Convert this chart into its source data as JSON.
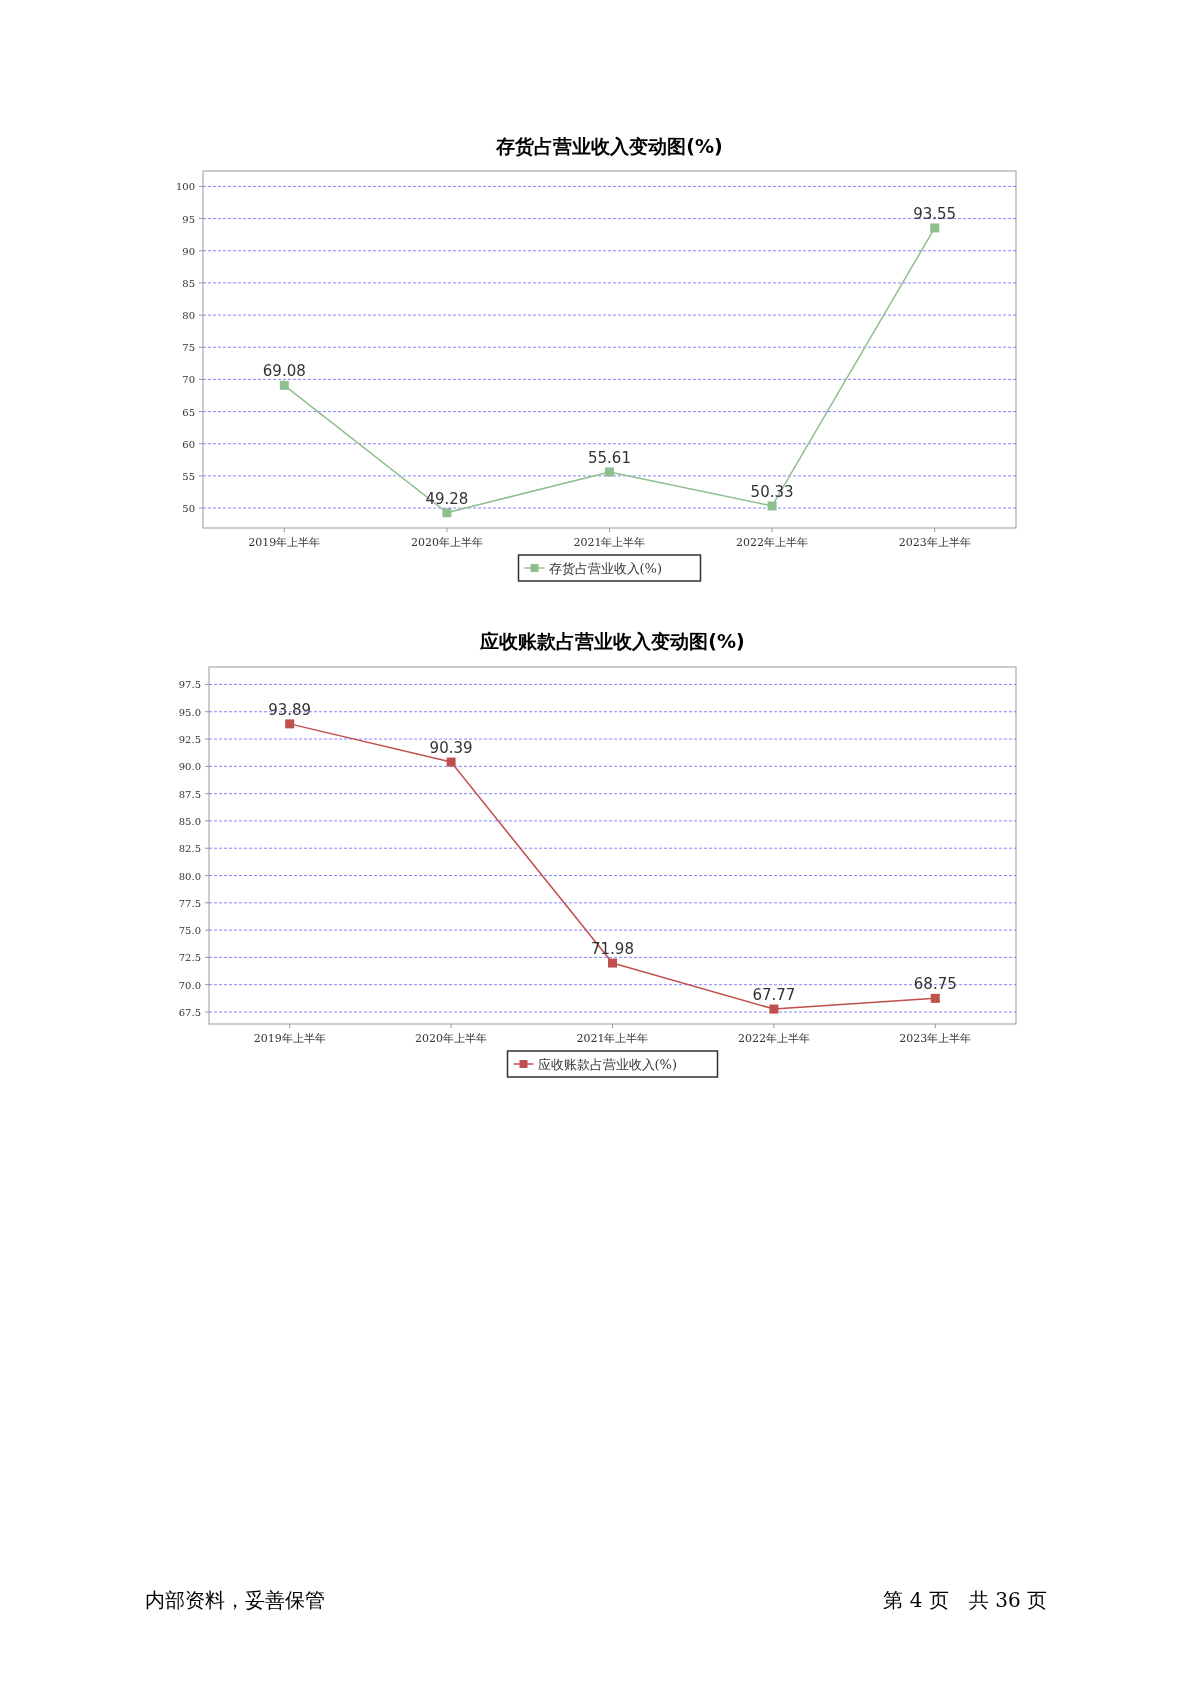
{
  "chart_data": [
    {
      "type": "line",
      "title": "存货占营业收入变动图(%)",
      "categories": [
        "2019年上半年",
        "2020年上半年",
        "2021年上半年",
        "2022年上半年",
        "2023年上半年"
      ],
      "series": [
        {
          "name": "存货占营业收入(%)",
          "color": "#8fbf8f",
          "values": [
            69.08,
            49.28,
            55.61,
            50.33,
            93.55
          ]
        }
      ],
      "ylim": [
        46.9,
        102.4
      ],
      "yticks": [
        50,
        55,
        60,
        65,
        70,
        75,
        80,
        85,
        90,
        95,
        100
      ],
      "grid": "y",
      "legend": "bottom",
      "marker": "square",
      "data_labels": true
    },
    {
      "type": "line",
      "title": "应收账款占营业收入变动图(%)",
      "categories": [
        "2019年上半年",
        "2020年上半年",
        "2021年上半年",
        "2022年上半年",
        "2023年上半年"
      ],
      "series": [
        {
          "name": "应收账款占营业收入(%)",
          "color": "#c0504d",
          "values": [
            93.89,
            90.39,
            71.98,
            67.77,
            68.75
          ]
        }
      ],
      "ylim": [
        66.4,
        99.1
      ],
      "yticks": [
        {
          "value": 67.5,
          "label": "67.5"
        },
        {
          "value": 70,
          "label": "70.0"
        },
        {
          "value": 72.5,
          "label": "72.5"
        },
        {
          "value": 75,
          "label": "75.0"
        },
        {
          "value": 77.5,
          "label": "77.5"
        },
        {
          "value": 80,
          "label": "80.0"
        },
        {
          "value": 82.5,
          "label": "82.5"
        },
        {
          "value": 85,
          "label": "85.0"
        },
        {
          "value": 87.5,
          "label": "87.5"
        },
        {
          "value": 90,
          "label": "90.0"
        },
        {
          "value": 92.5,
          "label": "92.5"
        },
        {
          "value": 95,
          "label": "95.0"
        },
        {
          "value": 97.5,
          "label": "97.5"
        }
      ],
      "grid": "y",
      "legend": "bottom",
      "marker": "square",
      "data_labels": true
    },
    {
      "type": "other",
      "annotations": [
        "内部资料，妥善保管",
        "第 4 页　共 36 页"
      ]
    }
  ]
}
